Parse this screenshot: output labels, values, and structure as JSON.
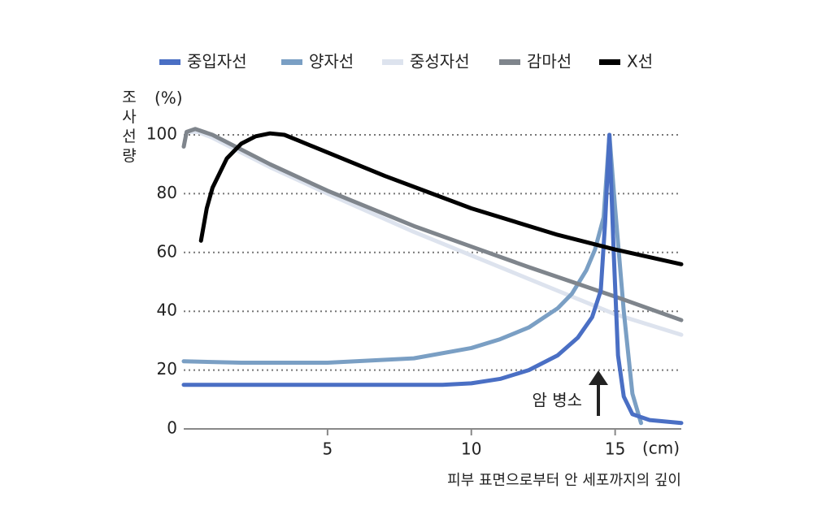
{
  "chart_data": {
    "type": "line",
    "ylabel": "조사선량",
    "y_unit": "(%)",
    "x_unit": "(cm)",
    "xlabel": "피부 표면으로부터 안 세포까지의 깊이",
    "annotation": "암 병소",
    "xlim": [
      0,
      17.3
    ],
    "ylim": [
      0,
      100
    ],
    "xticks": [
      5,
      10,
      15
    ],
    "yticks": [
      0,
      20,
      40,
      60,
      80,
      100
    ],
    "grid": true,
    "series": [
      {
        "name": "중입자선",
        "color": "#4a6fc4",
        "x": [
          0,
          3,
          6,
          9,
          10,
          11,
          12,
          13,
          13.7,
          14.2,
          14.5,
          14.65,
          14.8,
          14.95,
          15.1,
          15.3,
          15.6,
          16.2,
          17.3
        ],
        "values": [
          15,
          15,
          15,
          15,
          15.5,
          17,
          20,
          25,
          31,
          38,
          47,
          70,
          100,
          60,
          25,
          11,
          5,
          3,
          2
        ]
      },
      {
        "name": "양자선",
        "color": "#7a9fc4",
        "x": [
          0,
          2,
          5,
          8,
          10,
          11,
          12,
          13,
          13.5,
          14,
          14.3,
          14.6,
          14.8,
          15.0,
          15.3,
          15.6,
          15.9
        ],
        "values": [
          23,
          22.5,
          22.5,
          24,
          27.5,
          30.5,
          34.5,
          41,
          46,
          54,
          61,
          72,
          100,
          75,
          40,
          12,
          2
        ]
      },
      {
        "name": "중성자선",
        "color": "#dde3ee",
        "x": [
          0.1,
          0.5,
          1,
          3,
          5,
          8,
          10,
          12,
          15,
          17.3
        ],
        "values": [
          101,
          101,
          99,
          89,
          80,
          67,
          59,
          51,
          39,
          32
        ]
      },
      {
        "name": "감마선",
        "color": "#7f858c",
        "x": [
          0,
          0.1,
          0.4,
          1,
          3,
          5,
          8,
          10,
          12,
          15,
          17.3
        ],
        "values": [
          96,
          101,
          102,
          100,
          90,
          81,
          69,
          62,
          55,
          45,
          37
        ]
      },
      {
        "name": "X선",
        "color": "#000000",
        "x": [
          0.6,
          0.8,
          1,
          1.5,
          2,
          2.5,
          3,
          3.5,
          4,
          4.5,
          5,
          7,
          10,
          13,
          15,
          17.3
        ],
        "values": [
          64,
          75,
          82,
          92,
          97,
          99.5,
          100.5,
          100,
          98,
          96,
          94,
          86,
          75,
          66,
          61,
          56
        ]
      }
    ]
  }
}
